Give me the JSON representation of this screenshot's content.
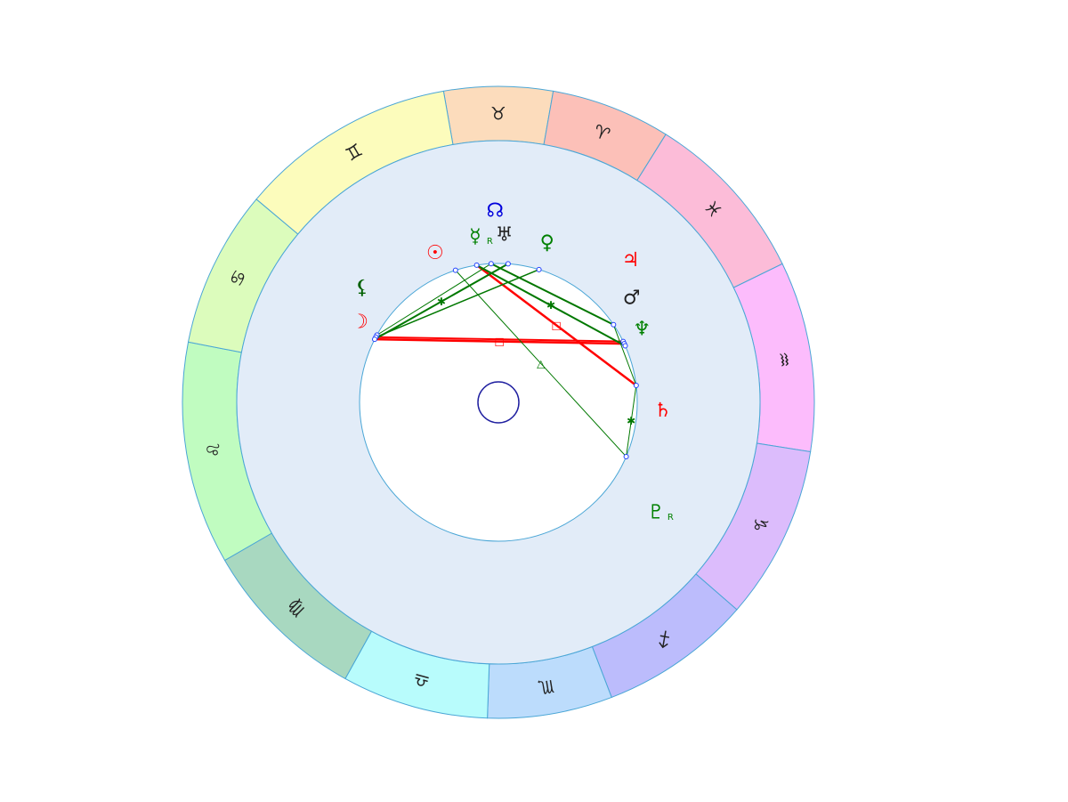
{
  "zodiac": [
    {
      "id": "taurus",
      "symbol": "♉",
      "start": 80,
      "end": 100,
      "fill": "#fcdcbc"
    },
    {
      "id": "aries",
      "symbol": "♈",
      "start": 58,
      "end": 80,
      "fill": "#fcc0b8"
    },
    {
      "id": "pisces",
      "symbol": "♓",
      "start": 26,
      "end": 58,
      "fill": "#fcbcd8"
    },
    {
      "id": "aquarius",
      "symbol": "♒",
      "start": -9,
      "end": 26,
      "fill": "#fcbcfc"
    },
    {
      "id": "capricorn",
      "symbol": "♑",
      "start": -41,
      "end": -9,
      "fill": "#dcbcfc"
    },
    {
      "id": "sagittarius",
      "symbol": "♐",
      "start": -69,
      "end": -41,
      "fill": "#bcbcfc"
    },
    {
      "id": "scorpio",
      "symbol": "♏",
      "start": -92,
      "end": -69,
      "fill": "#bcdcfc"
    },
    {
      "id": "libra",
      "symbol": "♎",
      "start": -119,
      "end": -92,
      "fill": "#b8fcfc"
    },
    {
      "id": "virgo",
      "symbol": "♍",
      "start": -150,
      "end": -119,
      "fill": "#a8d8c0"
    },
    {
      "id": "leo",
      "symbol": "♌",
      "start": 169,
      "end": 210,
      "fill": "#c0fcc0"
    },
    {
      "id": "cancer",
      "symbol": "♋",
      "start": 140,
      "end": 169,
      "fill": "#dcfcbc"
    },
    {
      "id": "gemini",
      "symbol": "♊",
      "start": 100,
      "end": 140,
      "fill": "#fcfcbc"
    }
  ],
  "points": [
    {
      "id": "p1",
      "angle": 108
    },
    {
      "id": "p2",
      "angle": 99
    },
    {
      "id": "p3",
      "angle": 93
    },
    {
      "id": "p4",
      "angle": 86
    },
    {
      "id": "p5",
      "angle": 73
    },
    {
      "id": "p6",
      "angle": 34
    },
    {
      "id": "p7",
      "angle": 26
    },
    {
      "id": "p8",
      "angle": 25
    },
    {
      "id": "p9",
      "angle": 24
    },
    {
      "id": "p10",
      "angle": 7
    },
    {
      "id": "p11",
      "angle": -23
    },
    {
      "id": "p12",
      "angle": 151
    },
    {
      "id": "p13",
      "angle": 152
    },
    {
      "id": "p14",
      "angle": 153
    }
  ],
  "aspects": [
    {
      "from": "p14",
      "to": "p8",
      "color": "#ff0000",
      "width": 2.5,
      "symbol": "□"
    },
    {
      "from": "p13",
      "to": "p7",
      "color": "#ff0000",
      "width": 2,
      "symbol": ""
    },
    {
      "from": "p2",
      "to": "p10",
      "color": "#ff0000",
      "width": 2.5,
      "symbol": "□"
    },
    {
      "from": "p3",
      "to": "p6",
      "color": "#ff0000",
      "width": 1.5,
      "symbol": ""
    },
    {
      "from": "p14",
      "to": "p4",
      "color": "#007800",
      "width": 2,
      "symbol": "✱"
    },
    {
      "from": "p13",
      "to": "p5",
      "color": "#007800",
      "width": 1.5,
      "symbol": ""
    },
    {
      "from": "p12",
      "to": "p3",
      "color": "#007800",
      "width": 1,
      "symbol": ""
    },
    {
      "from": "p2",
      "to": "p9",
      "color": "#007800",
      "width": 2,
      "symbol": "✱"
    },
    {
      "from": "p3",
      "to": "p6",
      "color": "#007800",
      "width": 2,
      "symbol": ""
    },
    {
      "from": "p1",
      "to": "p11",
      "color": "#007800",
      "width": 1,
      "symbol": "△"
    },
    {
      "from": "p6",
      "to": "p10",
      "color": "#007800",
      "width": 1,
      "symbol": ""
    },
    {
      "from": "p10",
      "to": "p11",
      "color": "#007800",
      "width": 1,
      "symbol": "✱"
    }
  ],
  "planets": [
    {
      "id": "north-node",
      "symbol": "☊",
      "angle": 91,
      "r": 215,
      "color": "#0000dc",
      "retro": ""
    },
    {
      "id": "mercury",
      "symbol": "☿",
      "angle": 98,
      "r": 188,
      "color": "#008000",
      "retro": "R"
    },
    {
      "id": "uranus",
      "symbol": "♅",
      "angle": 88,
      "r": 188,
      "color": "#222222",
      "retro": ""
    },
    {
      "id": "venus",
      "symbol": "♀",
      "angle": 73,
      "r": 187,
      "color": "#008000",
      "retro": ""
    },
    {
      "id": "sun",
      "symbol": "☉",
      "angle": 113,
      "r": 182,
      "color": "#ff0000",
      "retro": ""
    },
    {
      "id": "jupiter",
      "symbol": "♃",
      "angle": 47,
      "r": 218,
      "color": "#ff0000",
      "retro": ""
    },
    {
      "id": "mars",
      "symbol": "♂",
      "angle": 38,
      "r": 190,
      "color": "#222222",
      "retro": ""
    },
    {
      "id": "neptune",
      "symbol": "♆",
      "angle": 27,
      "r": 181,
      "color": "#008000",
      "retro": ""
    },
    {
      "id": "lilith",
      "symbol": "⚸",
      "angle": 140,
      "r": 200,
      "color": "#006000",
      "retro": ""
    },
    {
      "id": "moon",
      "symbol": "☽",
      "angle": 150,
      "r": 180,
      "color": "#ff0000",
      "retro": ""
    },
    {
      "id": "saturn",
      "symbol": "♄",
      "angle": -3,
      "r": 185,
      "color": "#ff0000",
      "retro": ""
    },
    {
      "id": "pluto",
      "symbol": "♇",
      "angle": -35,
      "r": 216,
      "color": "#008000",
      "retro": "R"
    }
  ],
  "colors": {
    "ring_stroke": "#4aa6d6",
    "inner_band": "#e2ecf8",
    "center_fill": "#ffffff",
    "center_circle": "#2020a0",
    "point_marker": "#2040ff"
  }
}
